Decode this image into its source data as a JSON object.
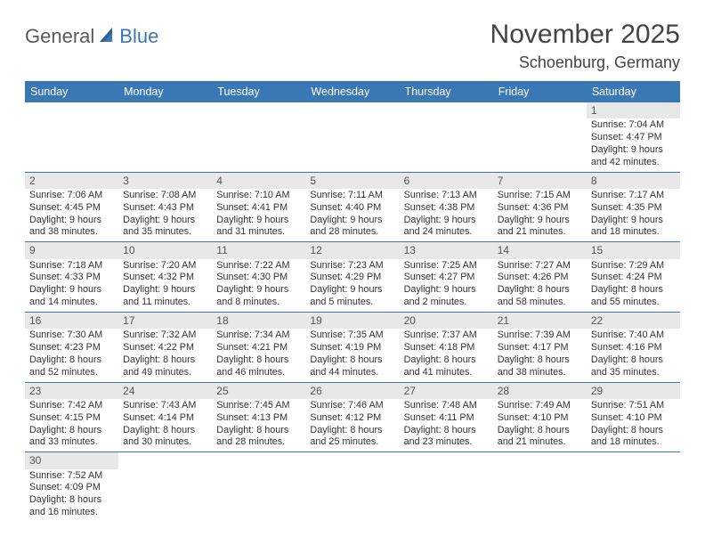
{
  "logo": {
    "part1": "General",
    "part2": "Blue"
  },
  "title": "November 2025",
  "location": "Schoenburg, Germany",
  "colors": {
    "header_bg": "#3a78b5",
    "daynum_bg": "#e8e8e8",
    "border": "#3a78b5",
    "text": "#333333"
  },
  "weekdays": [
    "Sunday",
    "Monday",
    "Tuesday",
    "Wednesday",
    "Thursday",
    "Friday",
    "Saturday"
  ],
  "weeks": [
    [
      null,
      null,
      null,
      null,
      null,
      null,
      {
        "n": "1",
        "sunrise": "Sunrise: 7:04 AM",
        "sunset": "Sunset: 4:47 PM",
        "day1": "Daylight: 9 hours",
        "day2": "and 42 minutes."
      }
    ],
    [
      {
        "n": "2",
        "sunrise": "Sunrise: 7:06 AM",
        "sunset": "Sunset: 4:45 PM",
        "day1": "Daylight: 9 hours",
        "day2": "and 38 minutes."
      },
      {
        "n": "3",
        "sunrise": "Sunrise: 7:08 AM",
        "sunset": "Sunset: 4:43 PM",
        "day1": "Daylight: 9 hours",
        "day2": "and 35 minutes."
      },
      {
        "n": "4",
        "sunrise": "Sunrise: 7:10 AM",
        "sunset": "Sunset: 4:41 PM",
        "day1": "Daylight: 9 hours",
        "day2": "and 31 minutes."
      },
      {
        "n": "5",
        "sunrise": "Sunrise: 7:11 AM",
        "sunset": "Sunset: 4:40 PM",
        "day1": "Daylight: 9 hours",
        "day2": "and 28 minutes."
      },
      {
        "n": "6",
        "sunrise": "Sunrise: 7:13 AM",
        "sunset": "Sunset: 4:38 PM",
        "day1": "Daylight: 9 hours",
        "day2": "and 24 minutes."
      },
      {
        "n": "7",
        "sunrise": "Sunrise: 7:15 AM",
        "sunset": "Sunset: 4:36 PM",
        "day1": "Daylight: 9 hours",
        "day2": "and 21 minutes."
      },
      {
        "n": "8",
        "sunrise": "Sunrise: 7:17 AM",
        "sunset": "Sunset: 4:35 PM",
        "day1": "Daylight: 9 hours",
        "day2": "and 18 minutes."
      }
    ],
    [
      {
        "n": "9",
        "sunrise": "Sunrise: 7:18 AM",
        "sunset": "Sunset: 4:33 PM",
        "day1": "Daylight: 9 hours",
        "day2": "and 14 minutes."
      },
      {
        "n": "10",
        "sunrise": "Sunrise: 7:20 AM",
        "sunset": "Sunset: 4:32 PM",
        "day1": "Daylight: 9 hours",
        "day2": "and 11 minutes."
      },
      {
        "n": "11",
        "sunrise": "Sunrise: 7:22 AM",
        "sunset": "Sunset: 4:30 PM",
        "day1": "Daylight: 9 hours",
        "day2": "and 8 minutes."
      },
      {
        "n": "12",
        "sunrise": "Sunrise: 7:23 AM",
        "sunset": "Sunset: 4:29 PM",
        "day1": "Daylight: 9 hours",
        "day2": "and 5 minutes."
      },
      {
        "n": "13",
        "sunrise": "Sunrise: 7:25 AM",
        "sunset": "Sunset: 4:27 PM",
        "day1": "Daylight: 9 hours",
        "day2": "and 2 minutes."
      },
      {
        "n": "14",
        "sunrise": "Sunrise: 7:27 AM",
        "sunset": "Sunset: 4:26 PM",
        "day1": "Daylight: 8 hours",
        "day2": "and 58 minutes."
      },
      {
        "n": "15",
        "sunrise": "Sunrise: 7:29 AM",
        "sunset": "Sunset: 4:24 PM",
        "day1": "Daylight: 8 hours",
        "day2": "and 55 minutes."
      }
    ],
    [
      {
        "n": "16",
        "sunrise": "Sunrise: 7:30 AM",
        "sunset": "Sunset: 4:23 PM",
        "day1": "Daylight: 8 hours",
        "day2": "and 52 minutes."
      },
      {
        "n": "17",
        "sunrise": "Sunrise: 7:32 AM",
        "sunset": "Sunset: 4:22 PM",
        "day1": "Daylight: 8 hours",
        "day2": "and 49 minutes."
      },
      {
        "n": "18",
        "sunrise": "Sunrise: 7:34 AM",
        "sunset": "Sunset: 4:21 PM",
        "day1": "Daylight: 8 hours",
        "day2": "and 46 minutes."
      },
      {
        "n": "19",
        "sunrise": "Sunrise: 7:35 AM",
        "sunset": "Sunset: 4:19 PM",
        "day1": "Daylight: 8 hours",
        "day2": "and 44 minutes."
      },
      {
        "n": "20",
        "sunrise": "Sunrise: 7:37 AM",
        "sunset": "Sunset: 4:18 PM",
        "day1": "Daylight: 8 hours",
        "day2": "and 41 minutes."
      },
      {
        "n": "21",
        "sunrise": "Sunrise: 7:39 AM",
        "sunset": "Sunset: 4:17 PM",
        "day1": "Daylight: 8 hours",
        "day2": "and 38 minutes."
      },
      {
        "n": "22",
        "sunrise": "Sunrise: 7:40 AM",
        "sunset": "Sunset: 4:16 PM",
        "day1": "Daylight: 8 hours",
        "day2": "and 35 minutes."
      }
    ],
    [
      {
        "n": "23",
        "sunrise": "Sunrise: 7:42 AM",
        "sunset": "Sunset: 4:15 PM",
        "day1": "Daylight: 8 hours",
        "day2": "and 33 minutes."
      },
      {
        "n": "24",
        "sunrise": "Sunrise: 7:43 AM",
        "sunset": "Sunset: 4:14 PM",
        "day1": "Daylight: 8 hours",
        "day2": "and 30 minutes."
      },
      {
        "n": "25",
        "sunrise": "Sunrise: 7:45 AM",
        "sunset": "Sunset: 4:13 PM",
        "day1": "Daylight: 8 hours",
        "day2": "and 28 minutes."
      },
      {
        "n": "26",
        "sunrise": "Sunrise: 7:46 AM",
        "sunset": "Sunset: 4:12 PM",
        "day1": "Daylight: 8 hours",
        "day2": "and 25 minutes."
      },
      {
        "n": "27",
        "sunrise": "Sunrise: 7:48 AM",
        "sunset": "Sunset: 4:11 PM",
        "day1": "Daylight: 8 hours",
        "day2": "and 23 minutes."
      },
      {
        "n": "28",
        "sunrise": "Sunrise: 7:49 AM",
        "sunset": "Sunset: 4:10 PM",
        "day1": "Daylight: 8 hours",
        "day2": "and 21 minutes."
      },
      {
        "n": "29",
        "sunrise": "Sunrise: 7:51 AM",
        "sunset": "Sunset: 4:10 PM",
        "day1": "Daylight: 8 hours",
        "day2": "and 18 minutes."
      }
    ],
    [
      {
        "n": "30",
        "sunrise": "Sunrise: 7:52 AM",
        "sunset": "Sunset: 4:09 PM",
        "day1": "Daylight: 8 hours",
        "day2": "and 16 minutes."
      },
      null,
      null,
      null,
      null,
      null,
      null
    ]
  ]
}
